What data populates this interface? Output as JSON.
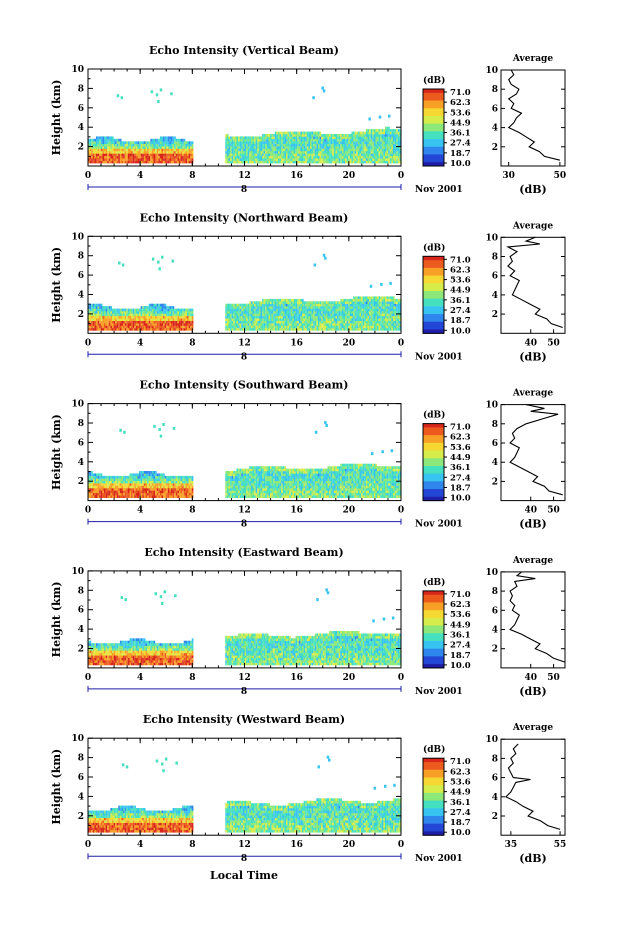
{
  "figure": {
    "xlabel": "Local Time",
    "date_label": "Nov 2001",
    "day_marker": "8"
  },
  "colorbar": {
    "unit": "(dB)",
    "ticks": [
      "71.0",
      "62.3",
      "53.6",
      "44.9",
      "36.1",
      "27.4",
      "18.7",
      "10.0"
    ],
    "colors": [
      "#1e1ea8",
      "#2346d6",
      "#2f86ec",
      "#38c4f0",
      "#45e0c0",
      "#8ce878",
      "#d6ec4a",
      "#f6d832",
      "#f8a026",
      "#ec5a1e",
      "#d8261a"
    ]
  },
  "chart_data": [
    {
      "type": "heatmap",
      "title": "Echo Intensity (Vertical Beam)",
      "ylabel": "Height (km)",
      "xticks": [
        "0",
        "4",
        "8",
        "12",
        "16",
        "20",
        "0"
      ],
      "yticks": [
        "2",
        "4",
        "6",
        "8",
        "10"
      ],
      "xlim": [
        0,
        24
      ],
      "ylim": [
        0,
        10
      ],
      "data_gap": [
        8,
        10.5
      ],
      "colorbar_range": [
        10.0,
        71.0
      ],
      "profile": {
        "title": "Average",
        "xlabel": "(dB)",
        "xticks": [
          "30",
          "50"
        ],
        "xlim": [
          27,
          52
        ],
        "yticks": [
          "2",
          "4",
          "6",
          "8",
          "10"
        ],
        "heights": [
          0.6,
          1.0,
          1.5,
          2.0,
          2.5,
          3.0,
          3.5,
          4.0,
          4.5,
          5.0,
          5.5,
          6.0,
          6.5,
          7.0,
          7.5,
          8.0,
          8.5,
          9.0,
          9.5,
          10.0
        ],
        "values": [
          50,
          44,
          42,
          38,
          40,
          37,
          34,
          30,
          32,
          33,
          35,
          31,
          32,
          30,
          33,
          34,
          31,
          30,
          32,
          31
        ]
      }
    },
    {
      "type": "heatmap",
      "title": "Echo Intensity (Northward Beam)",
      "ylabel": "Height (km)",
      "xticks": [
        "0",
        "4",
        "8",
        "12",
        "16",
        "20",
        "0"
      ],
      "yticks": [
        "2",
        "4",
        "6",
        "8",
        "10"
      ],
      "xlim": [
        0,
        24
      ],
      "ylim": [
        0,
        10
      ],
      "data_gap": [
        8,
        10.5
      ],
      "colorbar_range": [
        10.0,
        71.0
      ],
      "profile": {
        "title": "Average",
        "xlabel": "(dB)",
        "xticks": [
          "40",
          "50"
        ],
        "xlim": [
          27,
          55
        ],
        "yticks": [
          "2",
          "4",
          "6",
          "8",
          "10"
        ],
        "heights": [
          0.6,
          1.0,
          1.5,
          2.0,
          2.5,
          3.0,
          3.5,
          4.0,
          4.5,
          5.0,
          5.5,
          6.0,
          6.5,
          7.0,
          7.5,
          8.0,
          8.5,
          9.0,
          9.3,
          9.6,
          10.0
        ],
        "values": [
          54,
          49,
          47,
          42,
          44,
          40,
          36,
          32,
          33,
          34,
          35,
          31,
          33,
          30,
          32,
          31,
          34,
          30,
          44,
          38,
          42
        ]
      }
    },
    {
      "type": "heatmap",
      "title": "Echo Intensity (Southward Beam)",
      "ylabel": "Height (km)",
      "xticks": [
        "0",
        "4",
        "8",
        "12",
        "16",
        "20",
        "0"
      ],
      "yticks": [
        "2",
        "4",
        "6",
        "8",
        "10"
      ],
      "xlim": [
        0,
        24
      ],
      "ylim": [
        0,
        10
      ],
      "data_gap": [
        8,
        10.5
      ],
      "colorbar_range": [
        10.0,
        71.0
      ],
      "profile": {
        "title": "Average",
        "xlabel": "(dB)",
        "xticks": [
          "40",
          "50"
        ],
        "xlim": [
          27,
          55
        ],
        "yticks": [
          "2",
          "4",
          "6",
          "8",
          "10"
        ],
        "heights": [
          0.6,
          1.0,
          1.5,
          2.0,
          2.5,
          3.0,
          3.5,
          4.0,
          4.5,
          5.0,
          5.5,
          6.0,
          6.5,
          7.0,
          7.5,
          8.0,
          8.5,
          9.0,
          9.3,
          9.6,
          10.0
        ],
        "values": [
          54,
          48,
          46,
          41,
          43,
          39,
          35,
          31,
          33,
          34,
          35,
          31,
          33,
          32,
          34,
          38,
          45,
          52,
          40,
          46,
          38
        ]
      }
    },
    {
      "type": "heatmap",
      "title": "Echo Intensity (Eastward Beam)",
      "ylabel": "Height (km)",
      "xticks": [
        "0",
        "4",
        "8",
        "12",
        "16",
        "20",
        "0"
      ],
      "yticks": [
        "2",
        "4",
        "6",
        "8",
        "10"
      ],
      "xlim": [
        0,
        24
      ],
      "ylim": [
        0,
        10
      ],
      "data_gap": [
        8,
        10.5
      ],
      "colorbar_range": [
        10.0,
        71.0
      ],
      "profile": {
        "title": "Average",
        "xlabel": "(dB)",
        "xticks": [
          "40",
          "50"
        ],
        "xlim": [
          27,
          55
        ],
        "yticks": [
          "2",
          "4",
          "6",
          "8",
          "10"
        ],
        "heights": [
          0.6,
          1.0,
          1.5,
          2.0,
          2.5,
          3.0,
          3.5,
          4.0,
          4.5,
          5.0,
          5.5,
          6.0,
          6.5,
          7.0,
          7.5,
          8.0,
          8.5,
          9.0,
          9.3,
          9.6,
          10.0
        ],
        "values": [
          55,
          50,
          47,
          42,
          44,
          40,
          36,
          31,
          33,
          34,
          35,
          32,
          33,
          31,
          32,
          31,
          34,
          33,
          42,
          34,
          36
        ]
      }
    },
    {
      "type": "heatmap",
      "title": "Echo Intensity (Westward Beam)",
      "ylabel": "Height (km)",
      "xticks": [
        "0",
        "4",
        "8",
        "12",
        "16",
        "20",
        "0"
      ],
      "yticks": [
        "2",
        "4",
        "6",
        "8",
        "10"
      ],
      "xlim": [
        0,
        24
      ],
      "ylim": [
        0,
        10
      ],
      "data_gap": [
        8,
        10.5
      ],
      "colorbar_range": [
        10.0,
        71.0
      ],
      "profile": {
        "title": "Average",
        "xlabel": "(dB)",
        "xticks": [
          "35",
          "55"
        ],
        "xlim": [
          31,
          57
        ],
        "yticks": [
          "2",
          "4",
          "6",
          "8",
          "10"
        ],
        "heights": [
          0.6,
          1.0,
          1.5,
          2.0,
          2.5,
          3.0,
          3.5,
          4.0,
          4.5,
          5.0,
          5.5,
          5.8,
          6.0,
          6.5,
          7.0,
          7.5,
          8.0,
          8.5,
          9.0,
          9.5
        ],
        "values": [
          55,
          50,
          47,
          42,
          44,
          40,
          37,
          33,
          35,
          36,
          37,
          43,
          36,
          35,
          34,
          36,
          35,
          37,
          36,
          38
        ]
      }
    }
  ]
}
